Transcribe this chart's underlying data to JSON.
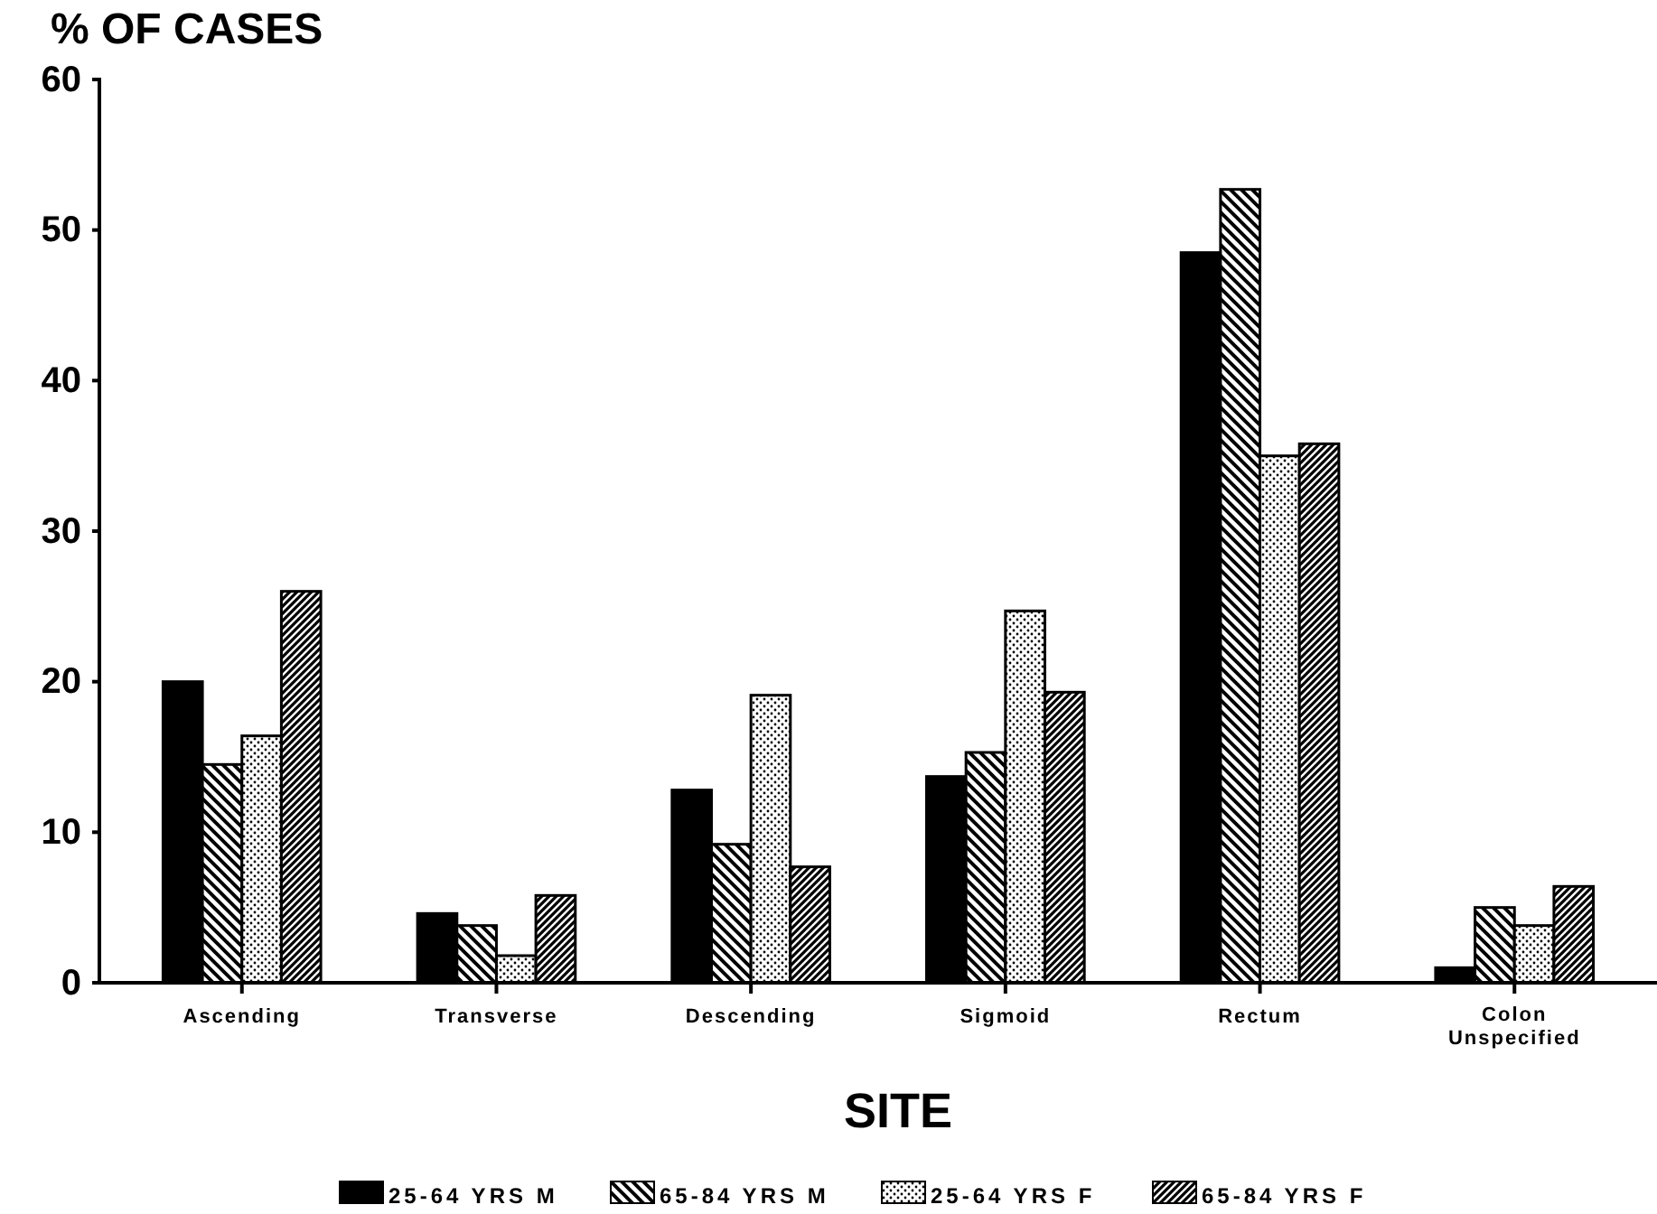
{
  "chart_data": {
    "type": "bar",
    "ylabel": "% OF CASES",
    "xlabel": "SITE",
    "categories": [
      "Ascending",
      "Transverse",
      "Descending",
      "Sigmoid",
      "Rectum",
      "Colon Unspecified"
    ],
    "series": [
      {
        "name": "25-64 YRS M",
        "color": "#000000",
        "values": [
          20,
          4.6,
          12.8,
          13.7,
          48.5,
          1
        ]
      },
      {
        "name": "65-84 YRS M",
        "color": "#000000",
        "values": [
          14.5,
          3.8,
          9.2,
          15.3,
          52.7,
          5
        ]
      },
      {
        "name": "25-64 YRS F",
        "color": "#000000",
        "values": [
          16.4,
          1.8,
          19.1,
          24.7,
          35,
          3.8
        ]
      },
      {
        "name": "65-84 YRS F",
        "color": "#000000",
        "values": [
          26,
          5.8,
          7.7,
          19.3,
          35.8,
          6.4
        ]
      }
    ],
    "ylim": [
      0,
      60
    ],
    "yticks": [
      0,
      10,
      20,
      30,
      40,
      50,
      60
    ],
    "grid": false,
    "legend": "bottom"
  }
}
